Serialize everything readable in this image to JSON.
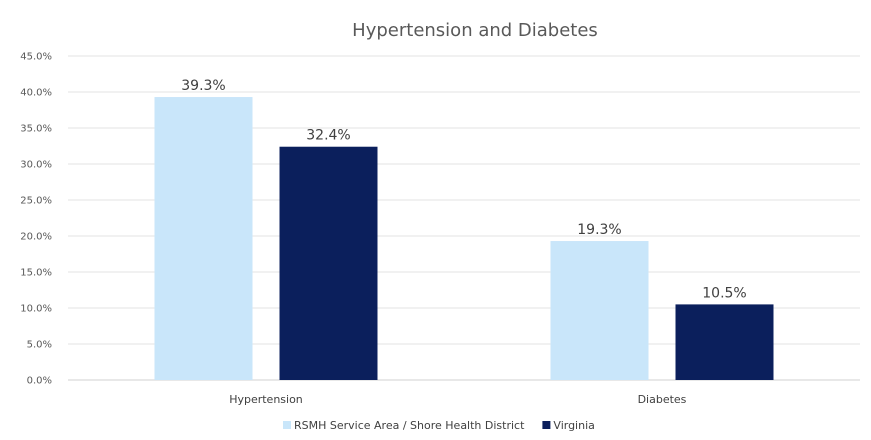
{
  "chart_data": {
    "type": "bar",
    "title": "Hypertension and Diabetes",
    "categories": [
      "Hypertension",
      "Diabetes"
    ],
    "series": [
      {
        "name": "RSMH Service Area / Shore Health District",
        "values": [
          39.3,
          19.3
        ],
        "color": "#c9e6fa"
      },
      {
        "name": "Virginia",
        "values": [
          32.4,
          10.5
        ],
        "color": "#0b1f5c"
      }
    ],
    "value_labels": [
      [
        "39.3%",
        "19.3%"
      ],
      [
        "32.4%",
        "10.5%"
      ]
    ],
    "ylim": [
      0,
      45
    ],
    "yticks": [
      "0.0%",
      "5.0%",
      "10.0%",
      "15.0%",
      "20.0%",
      "25.0%",
      "30.0%",
      "35.0%",
      "40.0%",
      "45.0%"
    ],
    "grid": true,
    "legend_position": "bottom"
  }
}
